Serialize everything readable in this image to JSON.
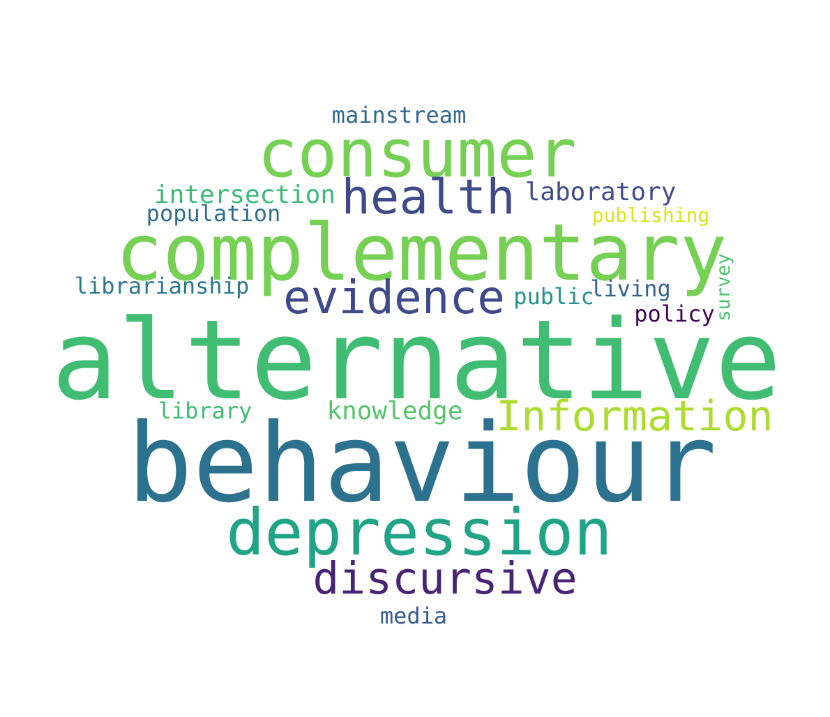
{
  "words": [
    {
      "text": "alternative",
      "color": "#40bd72"
    },
    {
      "text": "behaviour",
      "color": "#2c728e"
    },
    {
      "text": "complementary",
      "color": "#75d054"
    },
    {
      "text": "consumer",
      "color": "#75d054"
    },
    {
      "text": "depression",
      "color": "#20a386"
    },
    {
      "text": "health",
      "color": "#3e4a89"
    },
    {
      "text": "evidence",
      "color": "#3e4a89"
    },
    {
      "text": "discursive",
      "color": "#482475"
    },
    {
      "text": "Information",
      "color": "#addc30"
    },
    {
      "text": "mainstream",
      "color": "#31688e"
    },
    {
      "text": "laboratory",
      "color": "#3e4a89"
    },
    {
      "text": "intersection",
      "color": "#3aba76"
    },
    {
      "text": "population",
      "color": "#2e6f8e"
    },
    {
      "text": "publishing",
      "color": "#dde318"
    },
    {
      "text": "librarianship",
      "color": "#2a788e"
    },
    {
      "text": "public",
      "color": "#22908c"
    },
    {
      "text": "living",
      "color": "#33638d"
    },
    {
      "text": "policy",
      "color": "#440154"
    },
    {
      "text": "survey",
      "color": "#4ac16d"
    },
    {
      "text": "library",
      "color": "#3dbc74"
    },
    {
      "text": "knowledge",
      "color": "#52c569"
    },
    {
      "text": "media",
      "color": "#365c8d"
    }
  ]
}
